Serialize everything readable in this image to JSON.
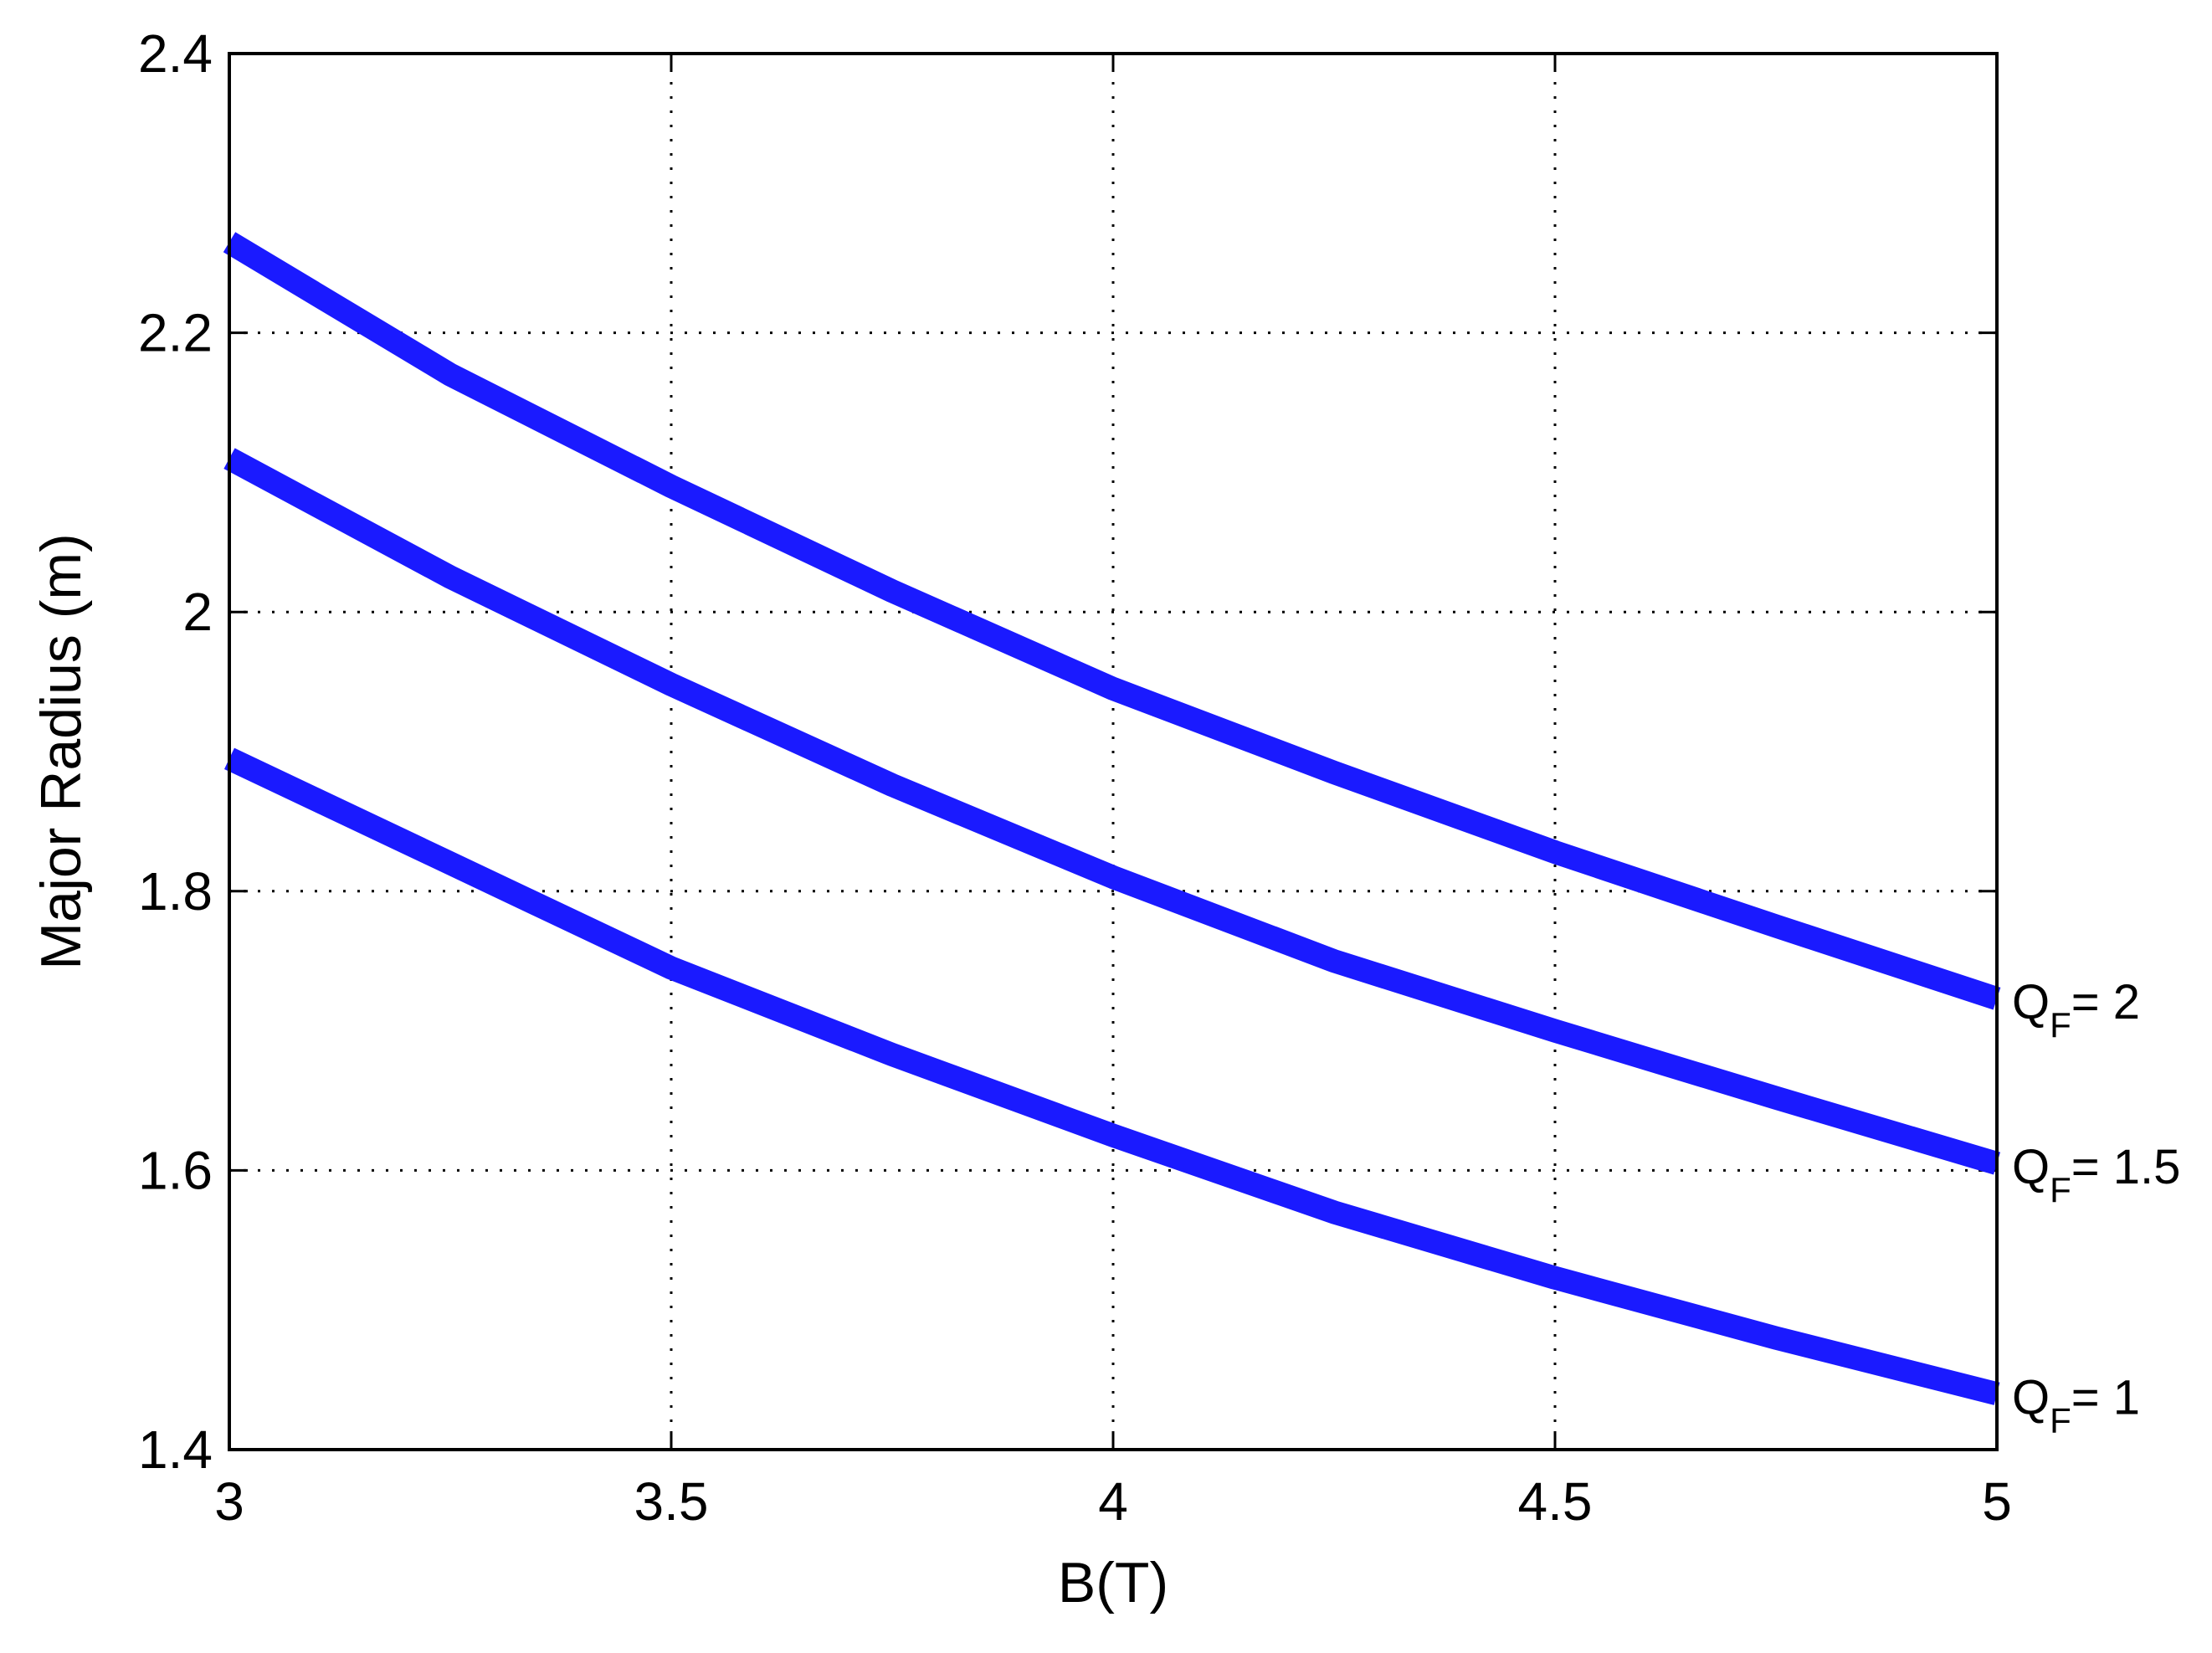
{
  "chart_data": {
    "type": "line",
    "xlabel": "B(T)",
    "ylabel": "Major Radius (m)",
    "xlim": [
      3,
      5
    ],
    "ylim": [
      1.4,
      2.4
    ],
    "xticks": [
      3,
      3.5,
      4,
      4.5,
      5
    ],
    "yticks": [
      1.4,
      1.6,
      1.8,
      2.0,
      2.2,
      2.4
    ],
    "xtick_labels": [
      "3",
      "3.5",
      "4",
      "4.5",
      "5"
    ],
    "ytick_labels": [
      "1.4",
      "1.6",
      "1.8",
      "2",
      "2.2",
      "2.4"
    ],
    "grid": true,
    "line_color": "#1a1aff",
    "series": [
      {
        "label_base": "Q",
        "label_sub": "F",
        "label_value": "= 2",
        "x": [
          3.0,
          3.25,
          3.5,
          3.75,
          4.0,
          4.25,
          4.5,
          4.75,
          5.0
        ],
        "y": [
          2.265,
          2.17,
          2.09,
          2.015,
          1.945,
          1.885,
          1.828,
          1.775,
          1.723
        ]
      },
      {
        "label_base": "Q",
        "label_sub": "F",
        "label_value": "= 1.5",
        "x": [
          3.0,
          3.25,
          3.5,
          3.75,
          4.0,
          4.25,
          4.5,
          4.75,
          5.0
        ],
        "y": [
          2.11,
          2.025,
          1.948,
          1.876,
          1.81,
          1.75,
          1.7,
          1.652,
          1.605
        ]
      },
      {
        "label_base": "Q",
        "label_sub": "F",
        "label_value": "= 1",
        "x": [
          3.0,
          3.25,
          3.5,
          3.75,
          4.0,
          4.25,
          4.5,
          4.75,
          5.0
        ],
        "y": [
          1.895,
          1.82,
          1.745,
          1.683,
          1.625,
          1.57,
          1.523,
          1.48,
          1.44
        ]
      }
    ]
  }
}
